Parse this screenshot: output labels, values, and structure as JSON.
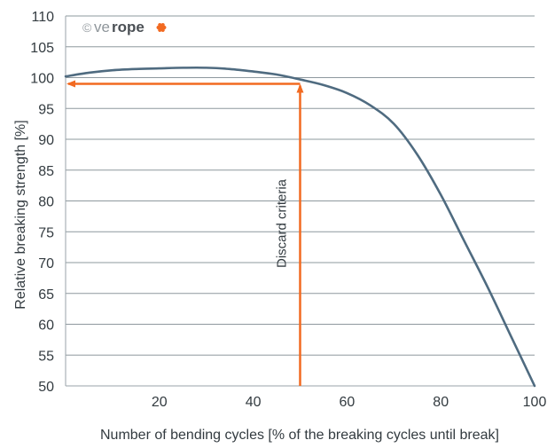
{
  "chart_data": {
    "type": "line",
    "xlabel": "Number of bending cycles [% of the breaking cycles until break]",
    "ylabel": "Relative breaking strength [%]",
    "xlim": [
      0,
      100
    ],
    "ylim": [
      50,
      110
    ],
    "x_ticks": [
      20,
      40,
      60,
      80,
      100
    ],
    "y_ticks": [
      50,
      55,
      60,
      65,
      70,
      75,
      80,
      85,
      90,
      95,
      100,
      105,
      110
    ],
    "grid": "horizontal",
    "series": [
      {
        "color": "#4f6b80",
        "points": [
          [
            0,
            100.2
          ],
          [
            5,
            100.8
          ],
          [
            10,
            101.2
          ],
          [
            15,
            101.4
          ],
          [
            20,
            101.5
          ],
          [
            25,
            101.6
          ],
          [
            30,
            101.6
          ],
          [
            35,
            101.4
          ],
          [
            40,
            101.0
          ],
          [
            45,
            100.5
          ],
          [
            50,
            99.7
          ],
          [
            55,
            98.8
          ],
          [
            60,
            97.5
          ],
          [
            65,
            95.5
          ],
          [
            70,
            92.5
          ],
          [
            75,
            87.5
          ],
          [
            80,
            81.0
          ],
          [
            85,
            73.5
          ],
          [
            90,
            66.0
          ],
          [
            95,
            58.0
          ],
          [
            100,
            50.0
          ]
        ]
      }
    ],
    "annotations": [
      {
        "text": "Discard criteria",
        "x": 50,
        "y": 99,
        "color": "#f26a21"
      }
    ],
    "watermark": {
      "copyright": "©",
      "brand_light": "ve",
      "brand_bold": "rope",
      "accent_color": "#f26a21"
    }
  }
}
